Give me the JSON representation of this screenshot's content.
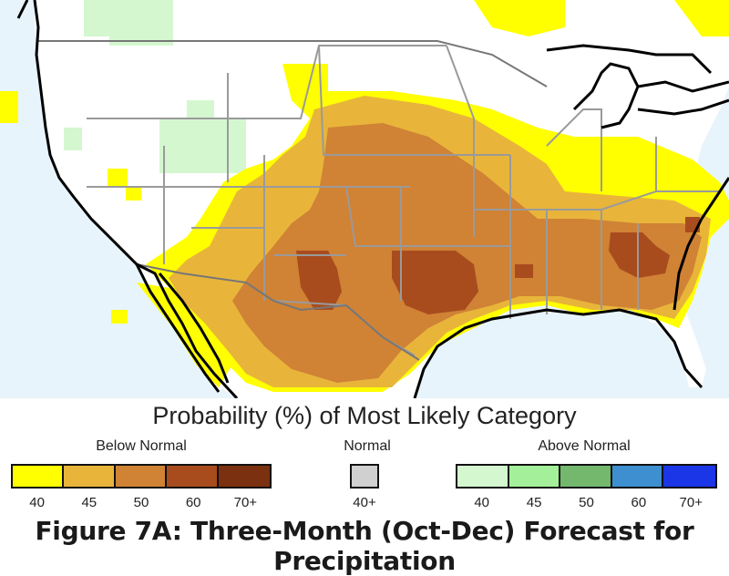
{
  "legend": {
    "title": "Probability (%) of Most Likely Category",
    "below": {
      "label": "Below Normal",
      "colors": [
        "#ffff00",
        "#e8b53a",
        "#d08235",
        "#a84c1e",
        "#7b3010"
      ],
      "ticks": [
        "40",
        "45",
        "50",
        "60",
        "70+"
      ]
    },
    "normal": {
      "label": "Normal",
      "colors": [
        "#d0d0d0"
      ],
      "ticks": [
        "40+"
      ]
    },
    "above": {
      "label": "Above Normal",
      "colors": [
        "#d4f7d0",
        "#a4f09a",
        "#74b86e",
        "#3e8fcf",
        "#1a36e6"
      ],
      "ticks": [
        "40",
        "45",
        "50",
        "60",
        "70+"
      ]
    }
  },
  "caption": "Figure 7A: Three-Month (Oct-Dec) Forecast for Precipitation",
  "map_colors": {
    "ocean": "#e8f4fb",
    "land": "#ffffff",
    "coast": "#000000",
    "border": "#9a9a9a"
  }
}
